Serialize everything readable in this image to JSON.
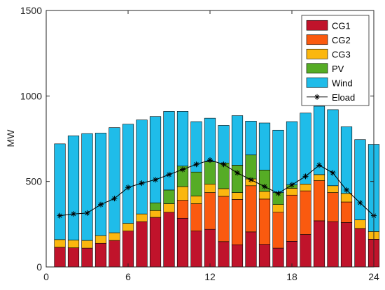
{
  "chart_data": {
    "type": "bar",
    "stacked": true,
    "title": "",
    "xlabel": "",
    "ylabel": "MW",
    "xlim": [
      0,
      24
    ],
    "ylim": [
      0,
      1500
    ],
    "xticks": [
      0,
      6,
      12,
      18,
      24
    ],
    "yticks": [
      0,
      500,
      1000,
      1500
    ],
    "grid": false,
    "legend": "top-right",
    "x": [
      1,
      2,
      3,
      4,
      5,
      6,
      7,
      8,
      9,
      10,
      11,
      12,
      13,
      14,
      15,
      16,
      17,
      18,
      19,
      20,
      21,
      22,
      23,
      24
    ],
    "series": [
      {
        "name": "CG1",
        "color": "#c0132b",
        "values": [
          115,
          112,
          110,
          138,
          155,
          210,
          265,
          290,
          320,
          285,
          210,
          220,
          148,
          130,
          205,
          132,
          110,
          150,
          190,
          270,
          265,
          260,
          225,
          162
        ]
      },
      {
        "name": "CG2",
        "color": "#fa5a0f",
        "values": [
          0,
          0,
          0,
          0,
          0,
          0,
          0,
          0,
          0,
          105,
          160,
          215,
          265,
          265,
          270,
          265,
          210,
          270,
          255,
          235,
          170,
          120,
          0,
          0
        ]
      },
      {
        "name": "CG3",
        "color": "#fbb70f",
        "values": [
          45,
          45,
          45,
          45,
          45,
          45,
          45,
          40,
          50,
          80,
          45,
          50,
          45,
          40,
          40,
          45,
          45,
          40,
          40,
          35,
          40,
          50,
          50,
          45
        ]
      },
      {
        "name": "PV",
        "color": "#56ac25",
        "values": [
          0,
          0,
          0,
          0,
          0,
          0,
          0,
          45,
          80,
          120,
          140,
          130,
          150,
          160,
          140,
          125,
          70,
          20,
          0,
          0,
          0,
          0,
          0,
          0
        ]
      },
      {
        "name": "Wind",
        "color": "#1fbce9",
        "values": [
          560,
          610,
          625,
          600,
          615,
          580,
          550,
          505,
          460,
          320,
          295,
          255,
          220,
          290,
          198,
          275,
          365,
          370,
          415,
          400,
          445,
          390,
          470,
          510
        ]
      },
      {
        "name": "Eload",
        "type": "line",
        "marker": "*",
        "color": "#000000",
        "values": [
          300,
          310,
          315,
          365,
          400,
          465,
          490,
          510,
          540,
          570,
          600,
          625,
          600,
          550,
          510,
          470,
          430,
          480,
          530,
          595,
          550,
          450,
          375,
          300
        ]
      }
    ]
  }
}
